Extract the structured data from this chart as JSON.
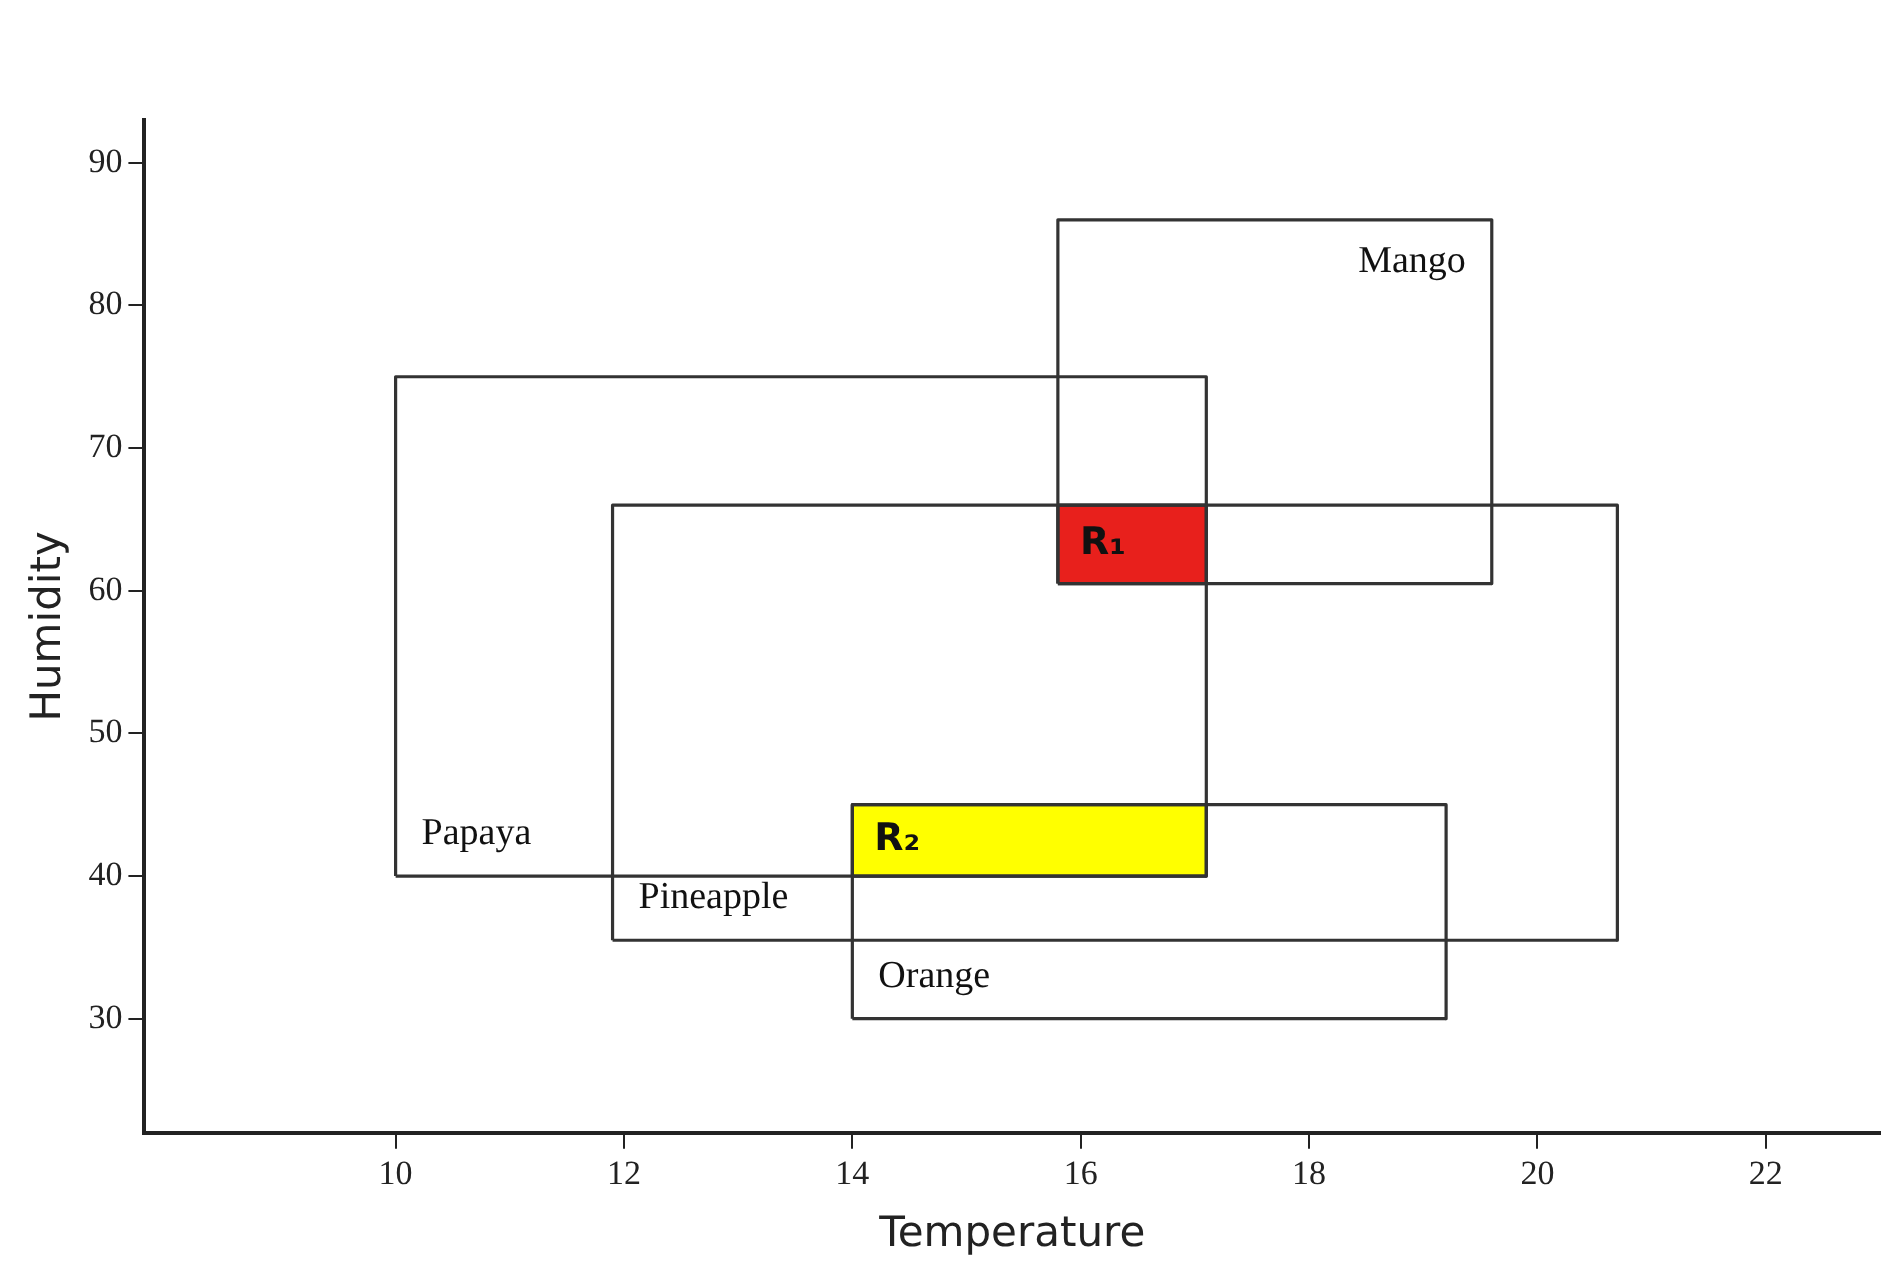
{
  "chart_data": {
    "type": "line",
    "xlabel": "Temperature",
    "ylabel": "Humidity",
    "xlim": [
      7.8,
      23
    ],
    "ylim": [
      22,
      93
    ],
    "xticks": [
      10,
      12,
      14,
      16,
      18,
      20,
      22
    ],
    "yticks": [
      30,
      40,
      50,
      60,
      70,
      80,
      90
    ],
    "grid": false,
    "legend": false,
    "marker": "none",
    "series": [
      {
        "name": "Mango",
        "type": "line",
        "color": "#333333",
        "x": [
          15.8,
          15.8,
          19.6,
          19.6
        ],
        "values": [
          60.5,
          86,
          86,
          60.5
        ]
      },
      {
        "type": "line",
        "color": "#333333",
        "x": [
          15.8,
          19.6
        ],
        "values": [
          60.5,
          60.5
        ]
      },
      {
        "name": "Papaya",
        "type": "line",
        "color": "#333333",
        "x": [
          10,
          10,
          17.1,
          17.1
        ],
        "values": [
          40,
          75,
          75,
          40
        ]
      },
      {
        "type": "line",
        "color": "#333333",
        "x": [
          10,
          17.1
        ],
        "values": [
          40,
          40
        ]
      },
      {
        "name": "Pineapple",
        "type": "line",
        "color": "#333333",
        "x": [
          11.9,
          11.9,
          20.7,
          20.7
        ],
        "values": [
          35.5,
          66,
          66,
          35.5
        ]
      },
      {
        "type": "line",
        "color": "#333333",
        "x": [
          11.9,
          20.7
        ],
        "values": [
          35.5,
          35.5
        ]
      },
      {
        "name": "Orange",
        "type": "line",
        "color": "#333333",
        "x": [
          14,
          14,
          19.2,
          19.2
        ],
        "values": [
          30,
          45,
          45,
          30
        ]
      },
      {
        "type": "line",
        "color": "#333333",
        "x": [
          14,
          19.2
        ],
        "values": [
          30,
          30
        ]
      },
      {
        "name": "R₁",
        "type": "area",
        "color": "#e8201c",
        "x": [
          15.8,
          15.8,
          17.1,
          17.1,
          15.8
        ],
        "values": [
          60.5,
          66,
          66,
          60.5,
          60.5
        ]
      },
      {
        "name": "R₂",
        "type": "area",
        "color": "#ffff00",
        "x": [
          14,
          14,
          17.1,
          17.1,
          14
        ],
        "values": [
          40,
          45,
          45,
          40,
          40
        ]
      }
    ]
  }
}
